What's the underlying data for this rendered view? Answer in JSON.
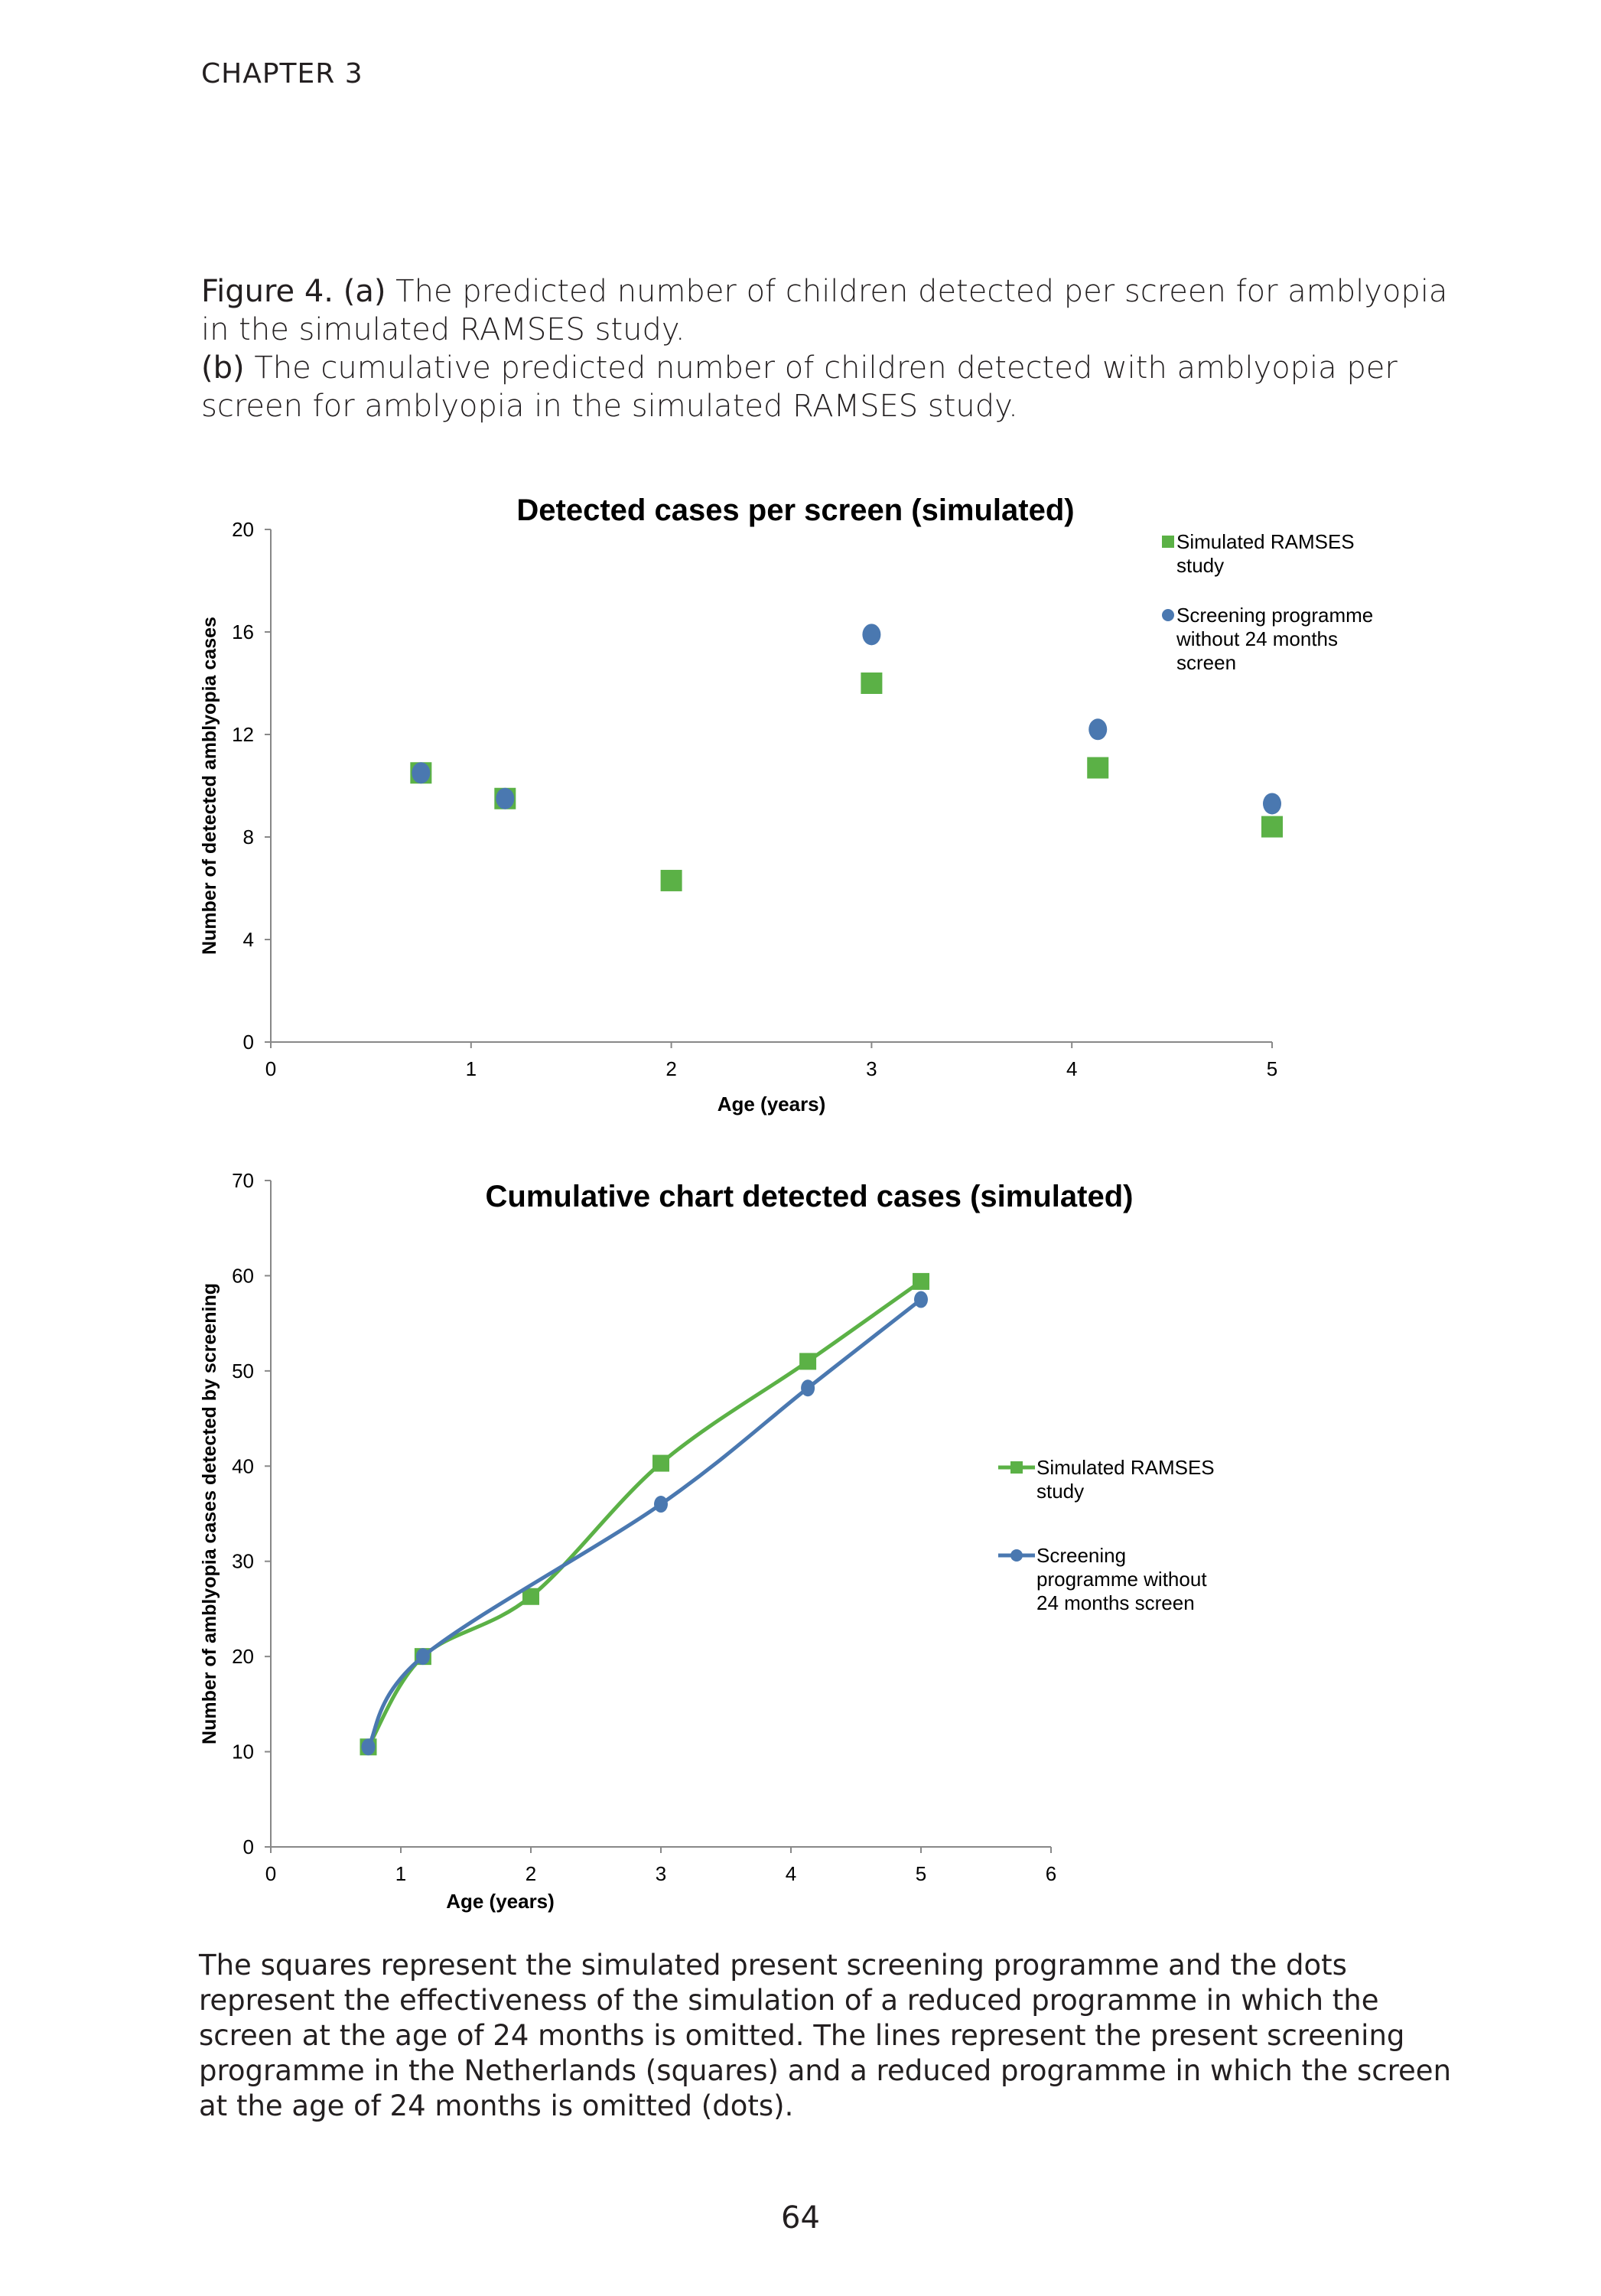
{
  "header": {
    "chapter": "CHAPTER 3"
  },
  "caption": {
    "fig_label": "Figure 4.",
    "a_label": "(a)",
    "a_text": " The predicted number of children detected per screen for amblyopia in the simulated RAMSES study.",
    "b_label": "(b)",
    "b_text": " The cumulative predicted number of children detected with amblyopia per screen for amblyopia in the simulated RAMSES study."
  },
  "footnote": "The squares represent the simulated present screening programme and the dots represent the effectiveness of the simulation of a reduced programme in which the screen at the age of 24 months is omitted. The lines represent the present screening programme in the Netherlands (squares) and a reduced programme in which the screen at the age of 24 months is omitted (dots).",
  "page_number": "64",
  "colors": {
    "green": "#5bb146",
    "blue": "#4a78b0"
  },
  "chart_data": [
    {
      "type": "scatter",
      "title": "Detected cases per screen (simulated)",
      "xlabel": "Age (years)",
      "ylabel": "Number of detected amblyopia cases",
      "xlim": [
        0,
        5
      ],
      "ylim": [
        0,
        20
      ],
      "xticks": [
        "0",
        "1",
        "2",
        "3",
        "4",
        "5"
      ],
      "yticks": [
        "0",
        "4",
        "8",
        "12",
        "16",
        "20"
      ],
      "legend_position": "top-right",
      "series": [
        {
          "name": "Simulated RAMSES study",
          "legend_lines": [
            "Simulated RAMSES",
            "study"
          ],
          "marker": "square",
          "x": [
            0.75,
            1.17,
            2,
            3,
            4.13,
            5
          ],
          "y": [
            10.5,
            9.5,
            6.3,
            14.0,
            10.7,
            8.4
          ]
        },
        {
          "name": "Screening programme without 24 months screen",
          "legend_lines": [
            "Screening programme",
            "without 24 months",
            "screen"
          ],
          "marker": "circle",
          "x": [
            0.75,
            1.17,
            3,
            4.13,
            5
          ],
          "y": [
            10.5,
            9.5,
            15.9,
            12.2,
            9.3
          ]
        }
      ]
    },
    {
      "type": "line",
      "title": "Cumulative chart detected cases (simulated)",
      "xlabel": "Age (years)",
      "ylabel": "Number of amblyopia cases detected by screening",
      "xlim": [
        0,
        6
      ],
      "ylim": [
        0,
        70
      ],
      "xticks": [
        "0",
        "1",
        "2",
        "3",
        "4",
        "5",
        "6"
      ],
      "yticks": [
        "0",
        "10",
        "20",
        "30",
        "40",
        "50",
        "60",
        "70"
      ],
      "legend_position": "right",
      "series": [
        {
          "name": "Simulated RAMSES study",
          "legend_lines": [
            "Simulated RAMSES",
            "study"
          ],
          "marker": "square",
          "x": [
            0.75,
            1.17,
            2,
            3,
            4.13,
            5
          ],
          "y": [
            10.5,
            20.0,
            26.3,
            40.3,
            51.0,
            59.4
          ]
        },
        {
          "name": "Screening programme without 24 months screen",
          "legend_lines": [
            "Screening",
            "programme without",
            "24 months screen"
          ],
          "marker": "circle",
          "x": [
            0.75,
            1.17,
            3,
            4.13,
            5
          ],
          "y": [
            10.5,
            20.0,
            36.0,
            48.2,
            57.5
          ]
        }
      ]
    }
  ]
}
